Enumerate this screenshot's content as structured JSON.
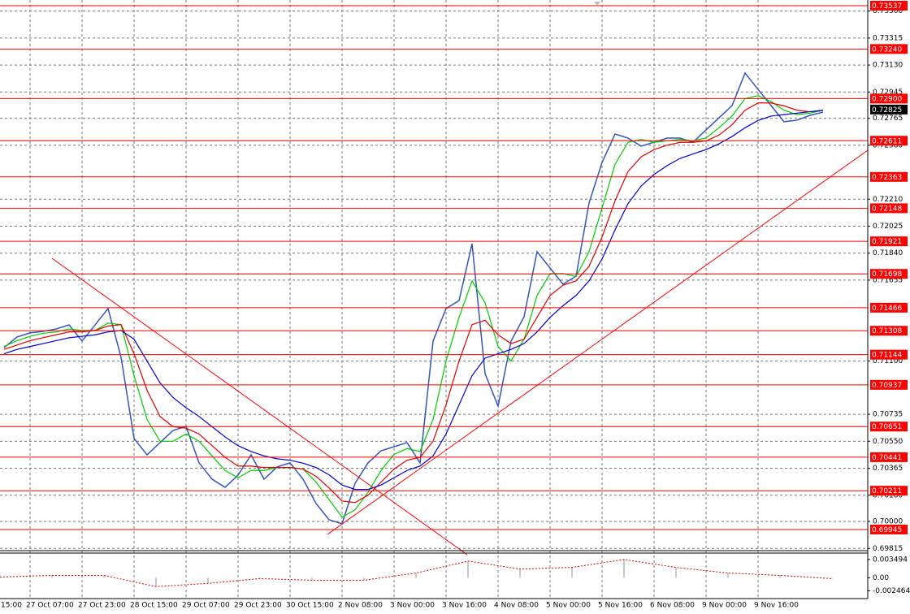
{
  "chart_data": [
    {
      "type": "line",
      "ylim": [
        0.698,
        0.73576
      ],
      "yticks": [
        {
          "value": 0.735,
          "label": "0.73500"
        },
        0.73315,
        {
          "value": 0.7313,
          "label": "0.73130"
        },
        0.72945,
        0.72765,
        {
          "value": 0.7258,
          "label": "0.72580"
        },
        {
          "value": 0.7221,
          "label": "0.72210"
        },
        0.72025,
        {
          "value": 0.7184,
          "label": "0.71840"
        },
        0.71655,
        {
          "value": 0.711,
          "label": "0.71100"
        },
        0.70735,
        {
          "value": 0.7055,
          "label": "0.70550"
        },
        0.70365,
        {
          "value": 0.7018,
          "label": "0.70180"
        },
        {
          "value": 0.7,
          "label": "0.70000"
        },
        0.69815
      ],
      "grid": true,
      "levels": [
        0.73537,
        {
          "value": 0.7324,
          "label": "0.73240"
        },
        {
          "value": 0.729,
          "label": "0.72900"
        },
        0.72611,
        0.72363,
        0.72148,
        0.71921,
        0.71698,
        0.71466,
        0.71308,
        0.71144,
        0.70937,
        0.70651,
        0.70441,
        0.70211,
        0.69945
      ],
      "level_color": "#ff0000",
      "current_price": 0.72825,
      "xtick_labels": [
        "15:00",
        "27 Oct 07:00",
        "27 Oct 23:00",
        "28 Oct 15:00",
        "29 Oct 07:00",
        "29 Oct 23:00",
        "30 Oct 15:00",
        "2 Nov 08:00",
        "3 Nov 00:00",
        "3 Nov 16:00",
        "4 Nov 08:00",
        "5 Nov 00:00",
        "5 Nov 16:00",
        "6 Nov 08:00",
        "9 Nov 00:00",
        "9 Nov 16:00"
      ],
      "series": [
        {
          "color": "#3355bb",
          "values": [
            0.71192,
            0.71265,
            0.71293,
            0.71304,
            0.7132,
            0.71348,
            0.71237,
            0.71348,
            0.7146,
            0.71126,
            0.70569,
            0.70457,
            0.70541,
            0.70624,
            0.70652,
            0.70402,
            0.7029,
            0.70234,
            0.70318,
            0.70457,
            0.7029,
            0.70374,
            0.70402,
            0.7029,
            0.70123,
            0.70012,
            0.69984,
            0.70262,
            0.70402,
            0.70485,
            0.70513,
            0.70541,
            0.70402,
            0.71237,
            0.7146,
            0.71515,
            0.71905,
            0.71014,
            0.70791,
            0.71237,
            0.71404,
            0.7185,
            0.71738,
            0.71627,
            0.71682,
            0.72184,
            0.72462,
            0.72657,
            0.72629,
            0.72574,
            0.72601,
            0.72629,
            0.72629,
            0.72601,
            0.72685,
            0.72768,
            0.72852,
            0.73075,
            0.72963,
            0.72852,
            0.72741,
            0.72752,
            0.72785,
            0.72807
          ]
        },
        {
          "color": "#00cc00",
          "values": [
            0.712,
            0.7124,
            0.7127,
            0.7129,
            0.713,
            0.7132,
            0.7131,
            0.7131,
            0.7136,
            0.7135,
            0.71,
            0.707,
            0.7055,
            0.7055,
            0.706,
            0.7055,
            0.7045,
            0.7035,
            0.703,
            0.7035,
            0.7035,
            0.7037,
            0.7037,
            0.7036,
            0.7027,
            0.7015,
            0.7003,
            0.7008,
            0.702,
            0.7035,
            0.7046,
            0.705,
            0.7048,
            0.707,
            0.711,
            0.714,
            0.7165,
            0.715,
            0.712,
            0.711,
            0.7125,
            0.7155,
            0.717,
            0.717,
            0.7168,
            0.7185,
            0.7215,
            0.7245,
            0.726,
            0.7262,
            0.726,
            0.7261,
            0.7262,
            0.7261,
            0.7263,
            0.727,
            0.7278,
            0.729,
            0.7292,
            0.7288,
            0.7282,
            0.7279,
            0.728,
            0.7282
          ]
        },
        {
          "color": "#dd0000",
          "values": [
            0.7118,
            0.7121,
            0.7124,
            0.7126,
            0.7128,
            0.713,
            0.713,
            0.7131,
            0.7134,
            0.7135,
            0.7115,
            0.709,
            0.7072,
            0.7065,
            0.7064,
            0.706,
            0.7052,
            0.7044,
            0.7038,
            0.7038,
            0.7037,
            0.7037,
            0.7037,
            0.7036,
            0.7031,
            0.7023,
            0.7014,
            0.7013,
            0.7018,
            0.7027,
            0.7036,
            0.7042,
            0.7044,
            0.7055,
            0.708,
            0.711,
            0.7135,
            0.7138,
            0.7128,
            0.7122,
            0.7125,
            0.714,
            0.7155,
            0.7162,
            0.7165,
            0.7175,
            0.7195,
            0.722,
            0.724,
            0.725,
            0.7255,
            0.7258,
            0.726,
            0.726,
            0.7261,
            0.7265,
            0.7272,
            0.7282,
            0.7287,
            0.7287,
            0.7285,
            0.7282,
            0.7281,
            0.7282
          ]
        },
        {
          "color": "#0000cc",
          "values": [
            0.7115,
            0.7118,
            0.712,
            0.7122,
            0.7124,
            0.7126,
            0.7127,
            0.7128,
            0.713,
            0.7131,
            0.7125,
            0.711,
            0.7095,
            0.7085,
            0.7078,
            0.7072,
            0.7065,
            0.7058,
            0.7052,
            0.7048,
            0.7045,
            0.7043,
            0.7042,
            0.704,
            0.7037,
            0.7032,
            0.7025,
            0.7022,
            0.7022,
            0.7025,
            0.703,
            0.7035,
            0.7038,
            0.7045,
            0.706,
            0.708,
            0.71,
            0.7112,
            0.7115,
            0.7118,
            0.7122,
            0.713,
            0.714,
            0.7148,
            0.7155,
            0.7165,
            0.718,
            0.72,
            0.7218,
            0.723,
            0.7238,
            0.7244,
            0.7249,
            0.7252,
            0.7255,
            0.7259,
            0.7264,
            0.727,
            0.7275,
            0.7278,
            0.7279,
            0.728,
            0.7281,
            0.7282
          ]
        }
      ]
    },
    {
      "type": "oscillator",
      "ylim": [
        -0.00395,
        0.00471
      ],
      "yticks": [
        0.003494,
        {
          "value": 0,
          "label": "0.00"
        },
        -0.002464
      ],
      "color": "#dd0000",
      "bar_color": "#c8c8c8",
      "values": [
        0.00015,
        0.00046,
        0.00046,
        -0.00167,
        -0.00106,
        -0.00015,
        -0.00046,
        -0.00046,
        0.00091,
        0.00319,
        0.00167,
        0.00198,
        0.00349,
        0.00198,
        0.00091,
        0.00046,
        -0.00015
      ]
    }
  ]
}
